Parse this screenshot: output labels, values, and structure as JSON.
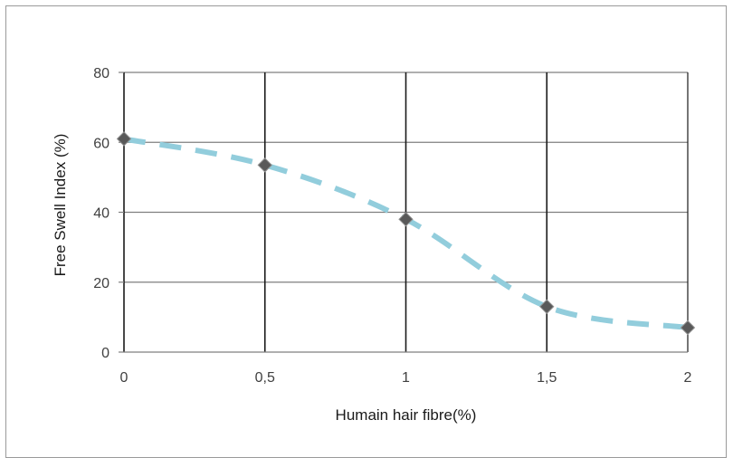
{
  "chart_data": {
    "type": "line",
    "title": "",
    "xlabel": "Humain hair fibre(%)",
    "ylabel": "Free Swell Index (%)",
    "x": [
      0,
      0.5,
      1,
      1.5,
      2
    ],
    "x_tick_labels": [
      "0",
      "0,5",
      "1",
      "1,5",
      "2"
    ],
    "y_ticks": [
      0,
      20,
      40,
      60,
      80
    ],
    "ylim": [
      0,
      80
    ],
    "xlim": [
      0,
      2
    ],
    "grid": "on",
    "legend": "none",
    "series": [
      {
        "values": [
          61,
          53.5,
          38,
          13,
          7
        ],
        "line_style": "dashed",
        "marker": "diamond",
        "line_color": "#92cddc",
        "marker_color": "#595959"
      }
    ]
  }
}
